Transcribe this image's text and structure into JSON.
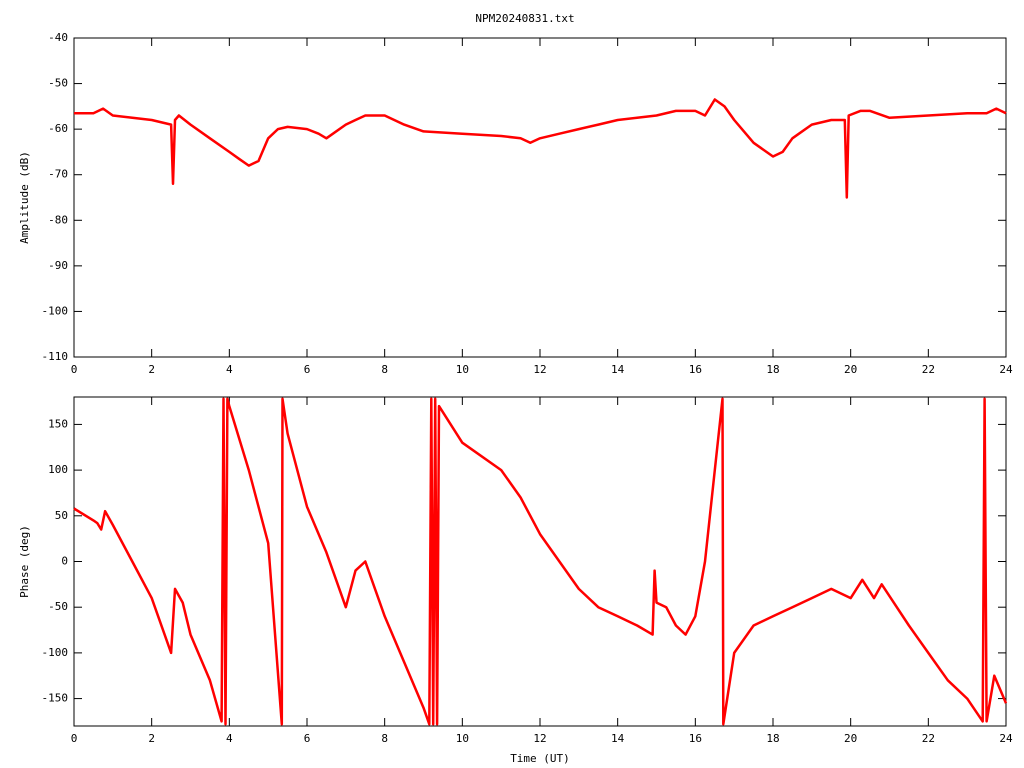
{
  "chart_data": [
    {
      "type": "line",
      "title": "NPM20240831.txt",
      "y_label": "Amplitude (dB)",
      "color": "#ff0000",
      "xlim": [
        0,
        24
      ],
      "xticks": [
        0,
        2,
        4,
        6,
        8,
        10,
        12,
        14,
        16,
        18,
        20,
        22,
        24
      ],
      "ylim": [
        -110,
        -40
      ],
      "yticks": [
        -110,
        -100,
        -90,
        -80,
        -70,
        -60,
        -50,
        -40
      ],
      "x": [
        0,
        0.5,
        0.75,
        1,
        1.5,
        2,
        2.5,
        2.55,
        2.6,
        2.7,
        3,
        3.5,
        4,
        4.25,
        4.5,
        4.75,
        5,
        5.25,
        5.5,
        6,
        6.3,
        6.5,
        7,
        7.25,
        7.5,
        8,
        8.5,
        9,
        10,
        11,
        11.5,
        11.75,
        12,
        12.5,
        13,
        13.5,
        14,
        14.5,
        15,
        15.5,
        16,
        16.25,
        16.5,
        16.75,
        17,
        17.5,
        18,
        18.25,
        18.5,
        19,
        19.5,
        19.85,
        19.9,
        19.95,
        20.25,
        20.5,
        21,
        22,
        23,
        23.5,
        23.75,
        24
      ],
      "values": [
        -56.5,
        -56.5,
        -55.5,
        -57,
        -57.5,
        -58,
        -59,
        -72,
        -58,
        -57,
        -59,
        -62,
        -65,
        -66.5,
        -68,
        -67,
        -62,
        -60,
        -59.5,
        -60,
        -61,
        -62,
        -59,
        -58,
        -57,
        -57,
        -59,
        -60.5,
        -61,
        -61.5,
        -62,
        -63,
        -62,
        -61,
        -60,
        -59,
        -58,
        -57.5,
        -57,
        -56,
        -56,
        -57,
        -53.5,
        -55,
        -58,
        -63,
        -66,
        -65,
        -62,
        -59,
        -58,
        -58,
        -75,
        -57,
        -56,
        -56,
        -57.5,
        -57,
        -56.5,
        -56.5,
        -55.5,
        -56.5
      ]
    },
    {
      "type": "line",
      "y_label": "Phase (deg)",
      "x_label": "Time (UT)",
      "color": "#ff0000",
      "xlim": [
        0,
        24
      ],
      "xticks": [
        0,
        2,
        4,
        6,
        8,
        10,
        12,
        14,
        16,
        18,
        20,
        22,
        24
      ],
      "ylim": [
        -180,
        180
      ],
      "yticks": [
        -150,
        -100,
        -50,
        0,
        50,
        100,
        150
      ],
      "x": [
        0,
        0.5,
        0.6,
        0.7,
        0.8,
        1,
        1.5,
        2,
        2.5,
        2.6,
        2.8,
        3,
        3.5,
        3.8,
        3.85,
        3.9,
        3.95,
        4,
        4.5,
        5,
        5.35,
        5.37,
        5.5,
        6,
        6.5,
        6.75,
        7,
        7.25,
        7.5,
        7.75,
        8,
        8.5,
        9,
        9.15,
        9.2,
        9.25,
        9.3,
        9.35,
        9.4,
        10,
        11,
        11.5,
        12,
        12.5,
        13,
        13.5,
        14,
        14.5,
        14.9,
        14.95,
        15,
        15.25,
        15.5,
        15.75,
        16,
        16.25,
        16.5,
        16.7,
        16.72,
        17,
        17.5,
        18,
        18.5,
        19,
        19.5,
        20,
        20.3,
        20.6,
        20.8,
        21.5,
        22,
        22.5,
        23,
        23.4,
        23.45,
        23.5,
        23.7,
        24
      ],
      "values": [
        58,
        45,
        42,
        35,
        55,
        40,
        0,
        -40,
        -100,
        -30,
        -45,
        -80,
        -130,
        -175,
        178,
        -178,
        178,
        170,
        100,
        20,
        -178,
        178,
        140,
        60,
        10,
        -20,
        -50,
        -10,
        0,
        -30,
        -60,
        -110,
        -160,
        -178,
        178,
        -178,
        178,
        -178,
        170,
        130,
        100,
        70,
        30,
        0,
        -30,
        -50,
        -60,
        -70,
        -80,
        -10,
        -45,
        -50,
        -70,
        -80,
        -60,
        0,
        100,
        178,
        -178,
        -100,
        -70,
        -60,
        -50,
        -40,
        -30,
        -40,
        -20,
        -40,
        -25,
        -70,
        -100,
        -130,
        -150,
        -175,
        178,
        -175,
        -125,
        -155
      ]
    }
  ]
}
